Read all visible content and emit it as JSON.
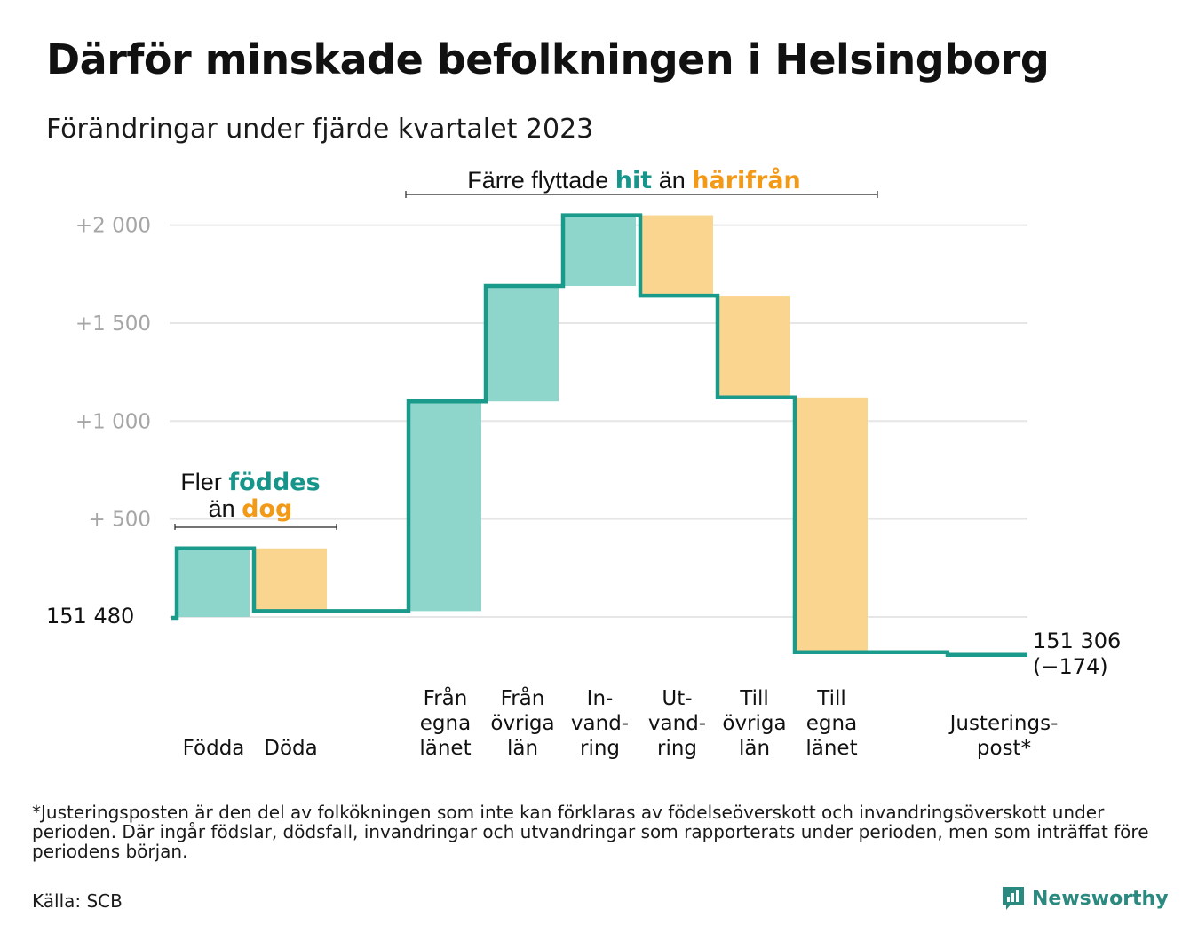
{
  "title": "Därför minskade befolkningen i Helsingborg",
  "subtitle": "Förändringar under fjärde kvartalet 2023",
  "colors": {
    "increase": "#8ed6cc",
    "decrease": "#fad58f",
    "line": "#1a9a8a",
    "teal_text": "#17958a",
    "orange_text": "#f29a18",
    "grid": "#e6e6e6"
  },
  "annotations": {
    "births": {
      "line1_prefix": "Fler",
      "line1_highlight": "föddes",
      "line2_prefix": "än",
      "line2_highlight": "dog"
    },
    "migration": {
      "prefix": "Färre flyttade",
      "highlight1": "hit",
      "middle": "än",
      "highlight2": "härifrån"
    }
  },
  "chart_data": {
    "type": "waterfall",
    "title": "Därför minskade befolkningen i Helsingborg",
    "subtitle": "Förändringar under fjärde kvartalet 2023",
    "start_value": 151480,
    "start_label": "151 480",
    "end_value": 151306,
    "end_label": "151 306",
    "end_change_label": "(−174)",
    "y_ticks": [
      {
        "offset": 500,
        "label": "+ 500"
      },
      {
        "offset": 1000,
        "label": "+1 000"
      },
      {
        "offset": 1500,
        "label": "+1 500"
      },
      {
        "offset": 2000,
        "label": "+2 000"
      }
    ],
    "ylim_offset": [
      0,
      2000
    ],
    "grid": true,
    "steps": [
      {
        "category": "Födda",
        "label_lines": [
          "Födda"
        ],
        "change": 350,
        "kind": "increase"
      },
      {
        "category": "Döda",
        "label_lines": [
          "Döda"
        ],
        "change": -320,
        "kind": "decrease"
      },
      {
        "category": "",
        "label_lines": [],
        "change": 0,
        "kind": "gap"
      },
      {
        "category": "Från egna länet",
        "label_lines": [
          "Från",
          "egna",
          "länet"
        ],
        "change": 1070,
        "kind": "increase"
      },
      {
        "category": "Från övriga län",
        "label_lines": [
          "Från",
          "övriga",
          "län"
        ],
        "change": 590,
        "kind": "increase"
      },
      {
        "category": "Invandring",
        "label_lines": [
          "In-",
          "vand-",
          "ring"
        ],
        "change": 360,
        "kind": "increase"
      },
      {
        "category": "Utvandring",
        "label_lines": [
          "Ut-",
          "vand-",
          "ring"
        ],
        "change": -410,
        "kind": "decrease"
      },
      {
        "category": "Till övriga län",
        "label_lines": [
          "Till",
          "övriga",
          "län"
        ],
        "change": -520,
        "kind": "decrease"
      },
      {
        "category": "Till egna länet",
        "label_lines": [
          "Till",
          "egna",
          "länet"
        ],
        "change": -1300,
        "kind": "decrease"
      },
      {
        "category": "",
        "label_lines": [],
        "change": 0,
        "kind": "gap"
      },
      {
        "category": "Justeringspost*",
        "label_lines": [
          "Justerings-",
          "post*"
        ],
        "change": -14,
        "kind": "adjustment"
      }
    ]
  },
  "footnote": "*Justeringsposten är den del av folkökningen som inte kan förklaras av födelseöverskott och invandringsöverskott under perioden. Där ingår födslar, dödsfall, invandringar och utvandringar som rapporterats under perioden, men som inträffat före periodens början.",
  "source": "Källa: SCB",
  "brand": {
    "name": "Newsworthy",
    "icon": "bar-chart-logo-icon"
  }
}
